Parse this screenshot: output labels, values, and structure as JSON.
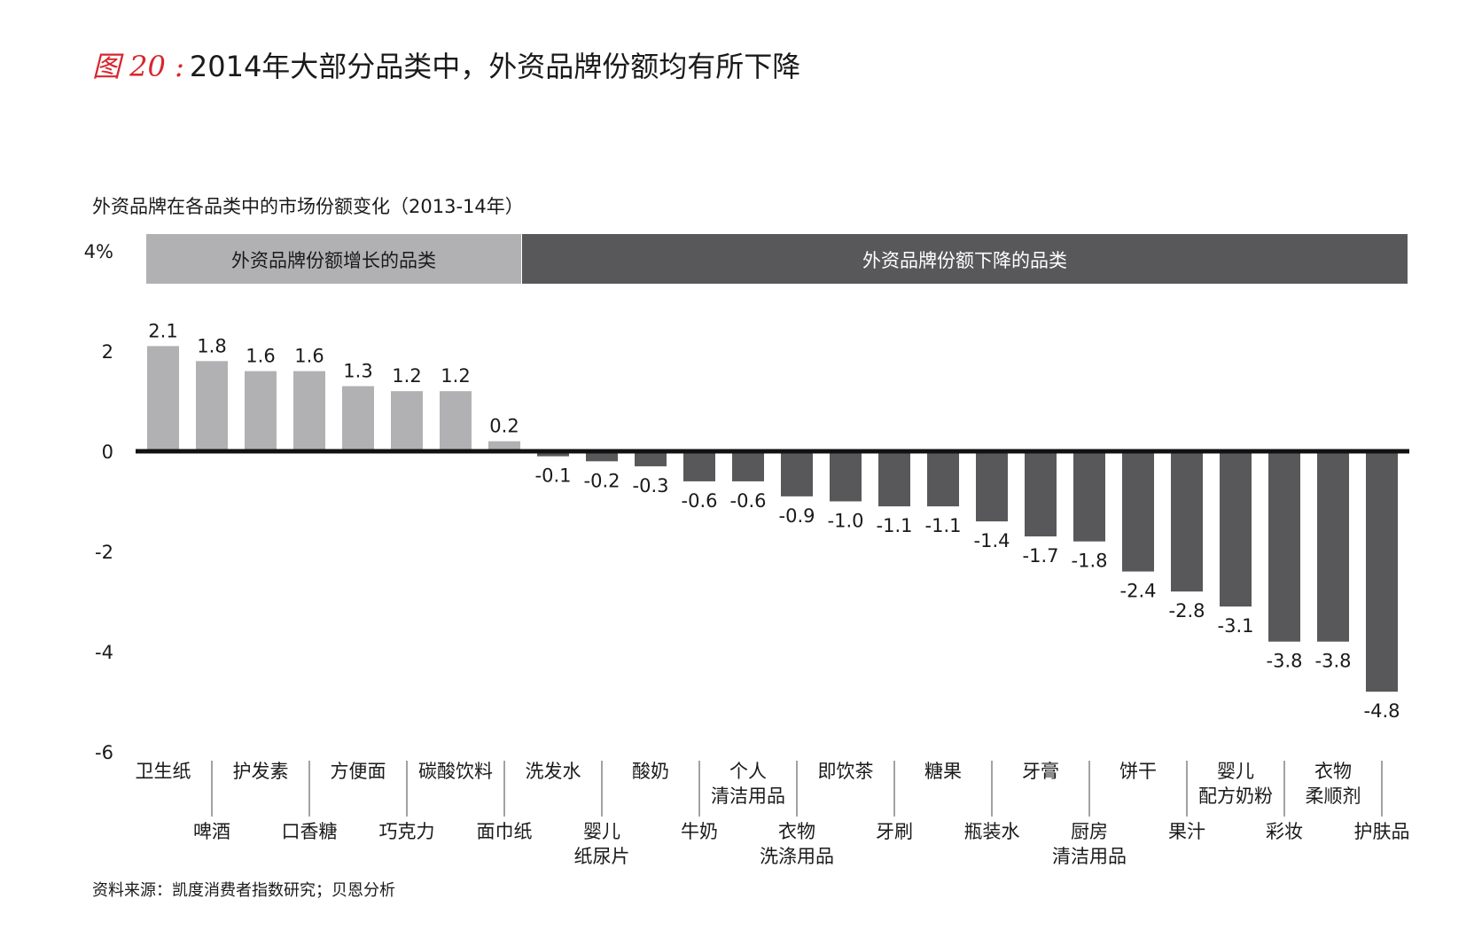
{
  "title": {
    "prefix": "图 20 :",
    "text": "2014年大部分品类中，外资品牌份额均有所下降"
  },
  "subtitle": "外资品牌在各品类中的市场份额变化（2013-14年）",
  "source": "资料来源：凯度消费者指数研究；贝恩分析",
  "colors": {
    "increase_bar": "#b1b1b3",
    "decrease_bar": "#58585a",
    "increase_band": "#b1b1b3",
    "decrease_band": "#58585a",
    "title_accent": "#d7262e",
    "axis": "#111111"
  },
  "chart_data": {
    "type": "bar",
    "ylabel": "",
    "xlabel": "",
    "ylim": [
      -6,
      4
    ],
    "ytick_labels": [
      "4%",
      "2",
      "0",
      "-2",
      "-4",
      "-6"
    ],
    "yticks": [
      4,
      2,
      0,
      -2,
      -4,
      -6
    ],
    "groups": [
      {
        "label": "外资品牌份额增长的品类",
        "from": 0,
        "to": 7
      },
      {
        "label": "外资品牌份额下降的品类",
        "from": 8,
        "to": 25
      }
    ],
    "categories": [
      "卫生纸",
      "啤酒",
      "护发素",
      "口香糖",
      "方便面",
      "巧克力",
      "碳酸饮料",
      "面巾纸",
      "洗发水",
      "婴儿\n纸尿片",
      "酸奶",
      "牛奶",
      "个人\n清洁用品",
      "衣物\n洗涤用品",
      "即饮茶",
      "牙刷",
      "糖果",
      "瓶装水",
      "牙膏",
      "厨房\n清洁用品",
      "饼干",
      "果汁",
      "婴儿\n配方奶粉",
      "彩妆",
      "衣物\n柔顺剂",
      "护肤品"
    ],
    "values": [
      2.1,
      1.8,
      1.6,
      1.6,
      1.3,
      1.2,
      1.2,
      0.2,
      -0.1,
      -0.2,
      -0.3,
      -0.6,
      -0.6,
      -0.9,
      -1.0,
      -1.1,
      -1.1,
      -1.4,
      -1.7,
      -1.8,
      -2.4,
      -2.8,
      -3.1,
      -3.8,
      -3.8,
      -4.8
    ],
    "value_labels": [
      "2.1",
      "1.8",
      "1.6",
      "1.6",
      "1.3",
      "1.2",
      "1.2",
      "0.2",
      "-0.1",
      "-0.2",
      "-0.3",
      "-0.6",
      "-0.6",
      "-0.9",
      "-1.0",
      "-1.1",
      "-1.1",
      "-1.4",
      "-1.7",
      "-1.8",
      "-2.4",
      "-2.8",
      "-3.1",
      "-3.8",
      "-3.8",
      "-4.8"
    ],
    "grid": false,
    "legend": "none"
  }
}
